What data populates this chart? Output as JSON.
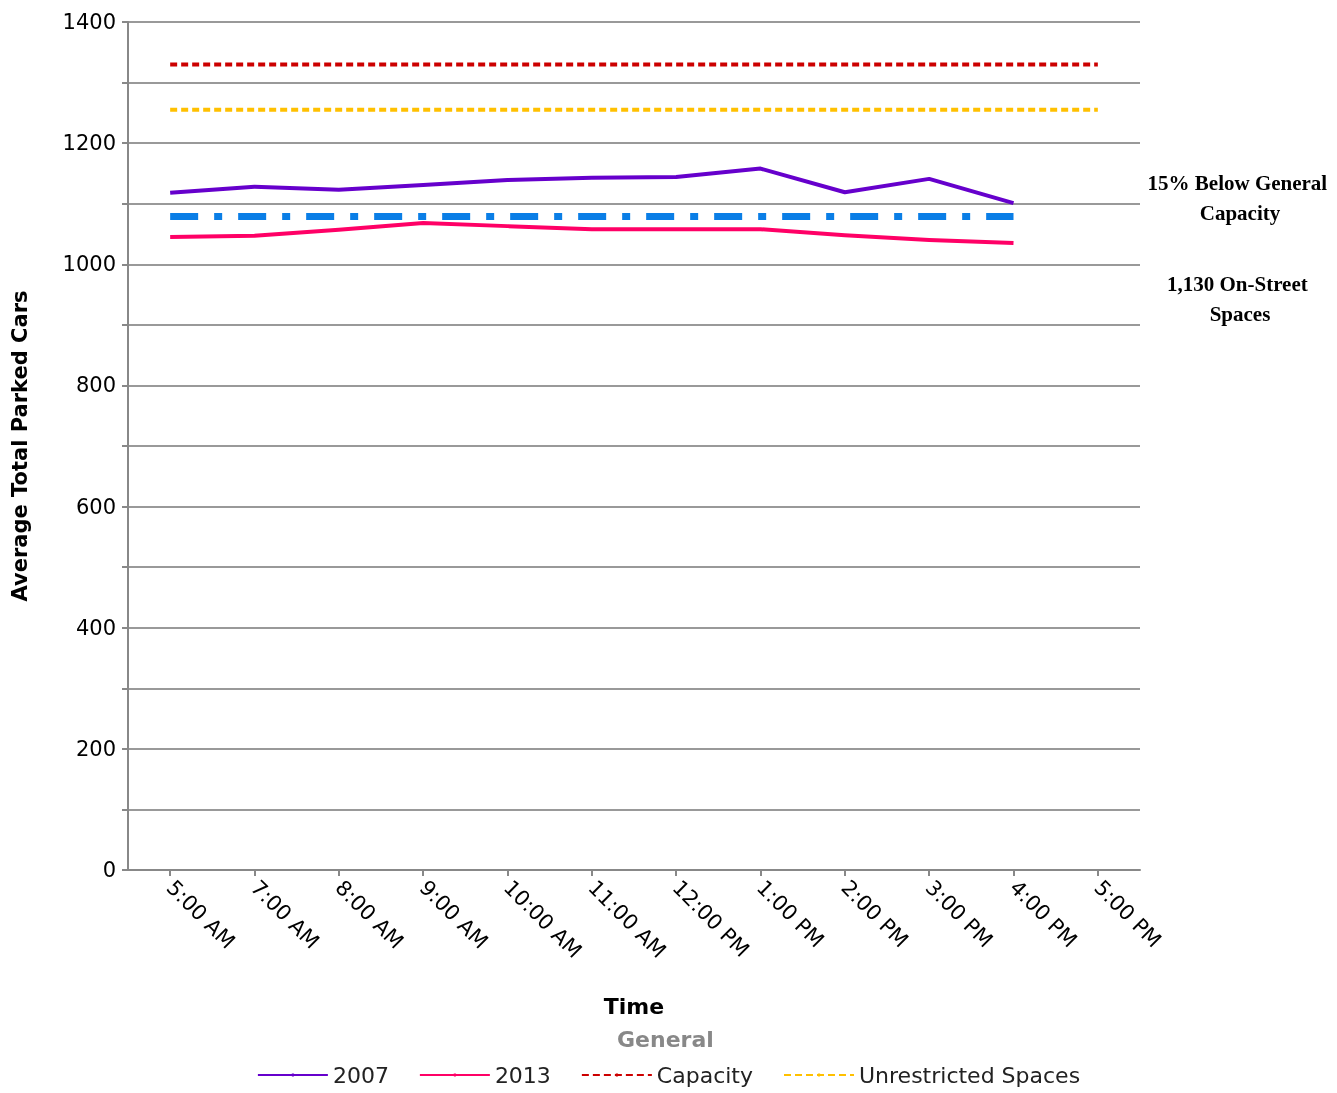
{
  "chart_data": {
    "type": "line",
    "xlabel": "Time",
    "ylabel": "Average Total Parked Cars",
    "legend_title": "General",
    "categories": [
      "5:00 AM",
      "7:00 AM",
      "8:00 AM",
      "9:00 AM",
      "10:00 AM",
      "11:00 AM",
      "12:00 PM",
      "1:00 PM",
      "2:00 PM",
      "3:00 PM",
      "4:00 PM",
      "5:00 PM"
    ],
    "series": [
      {
        "name": "2007",
        "color": "#6600cc",
        "line_style": "solid",
        "values": [
          1118,
          1128,
          1123,
          1131,
          1139,
          1143,
          1144,
          1158,
          1119,
          1141,
          1101,
          null
        ]
      },
      {
        "name": "2013",
        "color": "#ff0066",
        "line_style": "solid",
        "values": [
          1045,
          1047,
          1057,
          1068,
          1063,
          1058,
          1058,
          1058,
          1048,
          1040,
          1035,
          null
        ]
      },
      {
        "name": "Capacity",
        "color": "#cc0000",
        "line_style": "dashed",
        "values": [
          1330,
          1330,
          1330,
          1330,
          1330,
          1330,
          1330,
          1330,
          1330,
          1330,
          1330,
          1330
        ]
      },
      {
        "name": "Unrestricted Spaces",
        "color": "#ffc000",
        "line_style": "dashed",
        "values": [
          1255,
          1255,
          1255,
          1255,
          1255,
          1255,
          1255,
          1255,
          1255,
          1255,
          1255,
          1255
        ]
      }
    ],
    "ylim": [
      0,
      1400
    ],
    "yticks": [
      0,
      {
        "value": 100,
        "label": null
      },
      200,
      {
        "value": 300,
        "label": null
      },
      400,
      {
        "value": 500,
        "label": null
      },
      600,
      {
        "value": 700,
        "label": null
      },
      800,
      {
        "value": 900,
        "label": null
      },
      1000,
      {
        "value": 1100,
        "label": null
      },
      1200,
      {
        "value": 1300,
        "label": null
      },
      1400
    ],
    "ref_lines": [
      {
        "axis": "y",
        "value": 1080,
        "color": "#0a7ee6",
        "line_style": "dashdot"
      }
    ],
    "annotations": [
      "15% Below General Capacity",
      "1,130 On-Street Spaces"
    ],
    "grid": "y",
    "legend": "bottom",
    "marker": "none"
  }
}
